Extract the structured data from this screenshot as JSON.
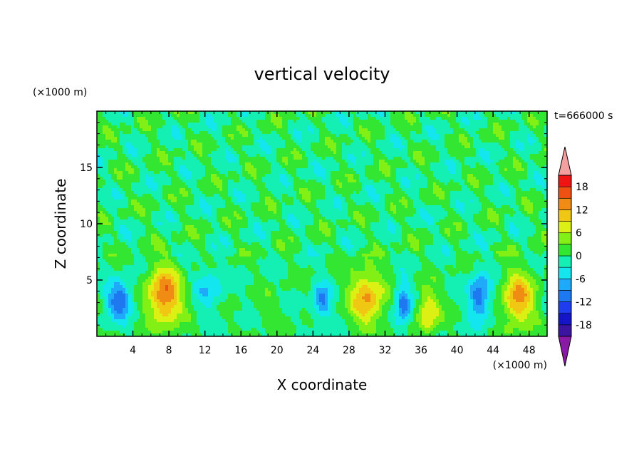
{
  "chart_data": {
    "type": "heatmap",
    "title": "vertical velocity",
    "xlabel": "X coordinate",
    "ylabel": "Z coordinate",
    "x_unit": "(×1000 m)",
    "y_unit": "(×1000 m)",
    "time_label": "t=666000 s",
    "xlim": [
      0,
      50
    ],
    "ylim": [
      0,
      20
    ],
    "x_ticks": [
      "4",
      "8",
      "12",
      "16",
      "20",
      "24",
      "28",
      "32",
      "36",
      "40",
      "44",
      "48"
    ],
    "y_ticks": [
      "5",
      "10",
      "15"
    ],
    "colorbar": {
      "ticks": [
        "18",
        "12",
        "6",
        "0",
        "-6",
        "-12",
        "-18"
      ],
      "levels": [
        -21,
        -18,
        -15,
        -12,
        -9,
        -6,
        -3,
        0,
        3,
        6,
        9,
        12,
        15,
        18,
        21
      ],
      "colors": [
        "#8a1aa6",
        "#3b14a0",
        "#1414c8",
        "#1e3cf0",
        "#1e78f0",
        "#1eaaf8",
        "#14e6f0",
        "#14f0b4",
        "#32e632",
        "#82f014",
        "#dcf014",
        "#f0c814",
        "#f08c14",
        "#f05014",
        "#f01414",
        "#f5a0a0"
      ]
    },
    "features": [
      {
        "x": 2.5,
        "z": 3.2,
        "w": -12,
        "sx": 1.4,
        "sz": 1.6
      },
      {
        "x": 7.5,
        "z": 3.6,
        "w": 15,
        "sx": 1.9,
        "sz": 2.6
      },
      {
        "x": 12.5,
        "z": 4.3,
        "w": -6,
        "sx": 1.6,
        "sz": 1.8
      },
      {
        "x": 19.0,
        "z": 2.6,
        "w": 2,
        "sx": 1.2,
        "sz": 1.5
      },
      {
        "x": 25.0,
        "z": 3.0,
        "w": -9,
        "sx": 1.0,
        "sz": 1.8
      },
      {
        "x": 30.0,
        "z": 3.4,
        "w": 12,
        "sx": 1.9,
        "sz": 2.6
      },
      {
        "x": 34.0,
        "z": 2.8,
        "w": -11,
        "sx": 0.9,
        "sz": 2.0
      },
      {
        "x": 36.8,
        "z": 2.2,
        "w": 10,
        "sx": 1.2,
        "sz": 1.9
      },
      {
        "x": 42.5,
        "z": 3.5,
        "w": -12,
        "sx": 1.2,
        "sz": 2.0
      },
      {
        "x": 46.8,
        "z": 3.3,
        "w": 13,
        "sx": 1.7,
        "sz": 2.4
      }
    ]
  }
}
